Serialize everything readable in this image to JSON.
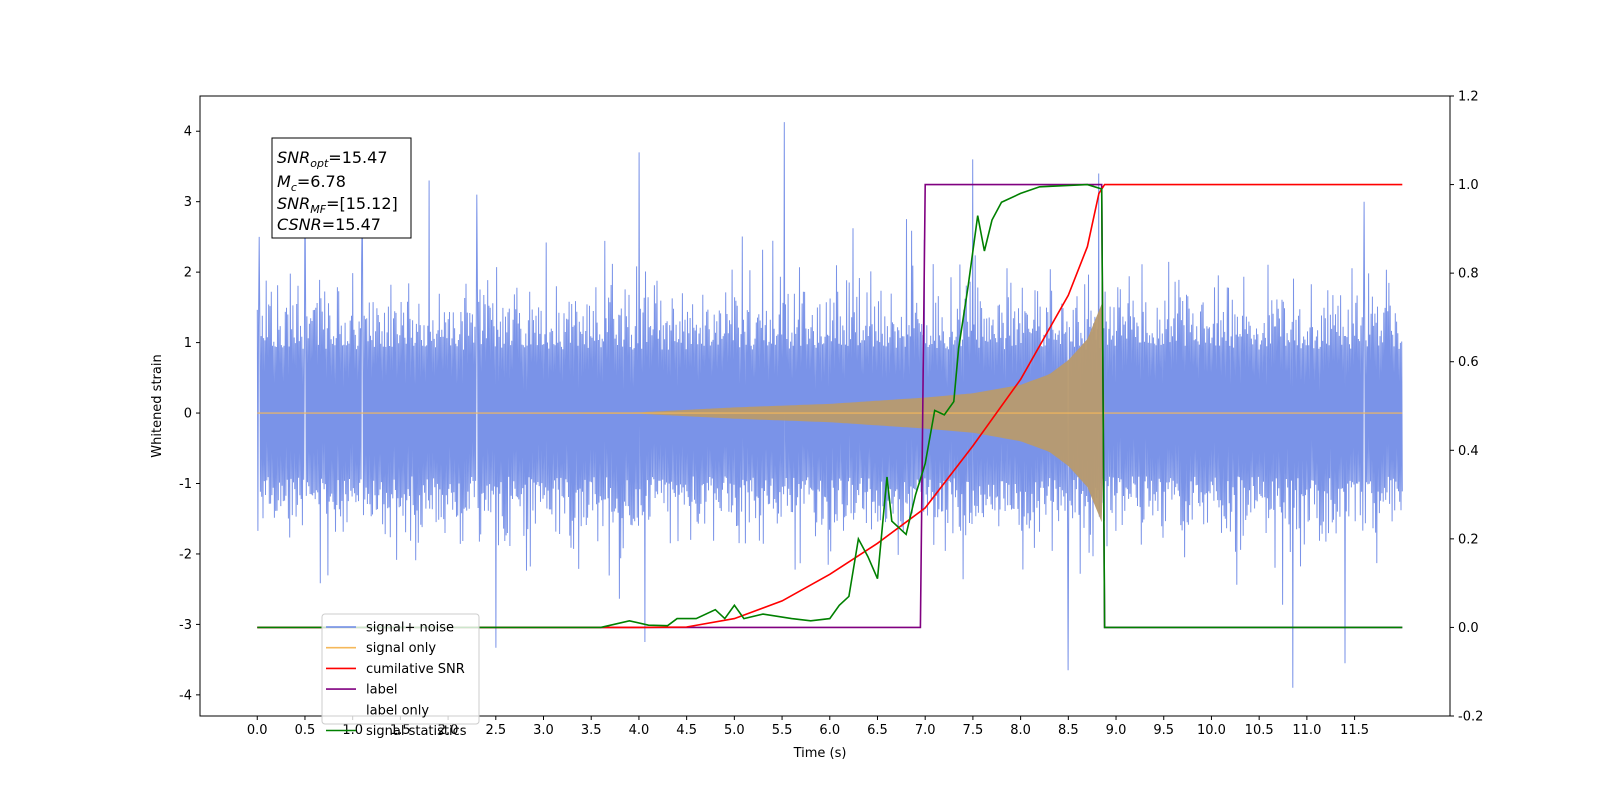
{
  "chart_data": {
    "type": "line",
    "title": "",
    "xlabel": "Time (s)",
    "ylabel": "Whitened strain",
    "xlim": [
      -0.6,
      12.5
    ],
    "ylim": [
      -4.3,
      4.5
    ],
    "y2lim": [
      -0.2,
      1.2
    ],
    "x_ticks": [
      "0.0",
      "0.5",
      "1.0",
      "1.5",
      "2.0",
      "2.5",
      "3.0",
      "3.5",
      "4.0",
      "4.5",
      "5.0",
      "5.5",
      "6.0",
      "6.5",
      "7.0",
      "7.5",
      "8.0",
      "8.5",
      "9.0",
      "9.5",
      "10.0",
      "10.5",
      "11.0",
      "11.5"
    ],
    "y_ticks": [
      "-4",
      "-3",
      "-2",
      "-1",
      "0",
      "1",
      "2",
      "3",
      "4"
    ],
    "y2_ticks": [
      "-0.2",
      "0.0",
      "0.2",
      "0.4",
      "0.6",
      "0.8",
      "1.0",
      "1.2"
    ],
    "grid": false,
    "legend_position": "lower-left",
    "annotation": {
      "snr_opt_base": "SNR",
      "snr_opt_sub": "opt",
      "snr_opt_value": "=15.47",
      "mc_base": "M",
      "mc_sub": "c",
      "mc_value": "=6.78",
      "snr_mf_base": "SNR",
      "snr_mf_sub": "MF",
      "snr_mf_value": "=[15.12]",
      "csnr_base": "CSNR",
      "csnr_value": "=15.47"
    },
    "series": [
      {
        "name": "signal+ noise",
        "color": "#6b87e6",
        "axis": "left",
        "style": "noise band",
        "x_range": [
          0.0,
          12.0
        ],
        "typical_amplitude": 2.4,
        "peaks": [
          [
            0.02,
            2.5
          ],
          [
            0.5,
            3.2
          ],
          [
            1.1,
            3.0
          ],
          [
            1.8,
            3.3
          ],
          [
            2.3,
            3.1
          ],
          [
            4.0,
            3.7
          ],
          [
            5.52,
            4.13
          ],
          [
            7.5,
            3.6
          ],
          [
            8.5,
            3.55
          ],
          [
            8.82,
            3.4
          ],
          [
            11.6,
            3.0
          ],
          [
            2.5,
            -3.33
          ],
          [
            4.06,
            -3.25
          ],
          [
            8.5,
            -3.65
          ],
          [
            10.85,
            -3.9
          ],
          [
            11.4,
            -3.55
          ]
        ]
      },
      {
        "name": "signal only",
        "color": "#f5b85a",
        "axis": "left",
        "style": "chirp",
        "envelope": [
          [
            0,
            0
          ],
          [
            4.0,
            0.01
          ],
          [
            5.0,
            0.08
          ],
          [
            6.0,
            0.13
          ],
          [
            7.0,
            0.22
          ],
          [
            7.5,
            0.28
          ],
          [
            8.0,
            0.4
          ],
          [
            8.3,
            0.55
          ],
          [
            8.5,
            0.75
          ],
          [
            8.7,
            1.05
          ],
          [
            8.85,
            1.55
          ],
          [
            8.88,
            0
          ],
          [
            12.0,
            0
          ]
        ]
      },
      {
        "name": "cumilative SNR",
        "color": "#ff0000",
        "axis": "right",
        "points": [
          [
            0,
            0
          ],
          [
            4.0,
            0
          ],
          [
            4.5,
            0.001
          ],
          [
            5.0,
            0.02
          ],
          [
            5.5,
            0.06
          ],
          [
            6.0,
            0.12
          ],
          [
            6.5,
            0.19
          ],
          [
            7.0,
            0.27
          ],
          [
            7.5,
            0.41
          ],
          [
            8.0,
            0.56
          ],
          [
            8.5,
            0.75
          ],
          [
            8.7,
            0.86
          ],
          [
            8.82,
            0.98
          ],
          [
            8.88,
            1.0
          ],
          [
            12.0,
            1.0
          ]
        ]
      },
      {
        "name": "label",
        "color": "#800080",
        "axis": "right",
        "points": [
          [
            0,
            0
          ],
          [
            6.95,
            0
          ],
          [
            7.0,
            1.0
          ],
          [
            8.85,
            1.0
          ],
          [
            8.88,
            0
          ],
          [
            12.0,
            0
          ]
        ]
      },
      {
        "name": "label only",
        "color": "#aaaaaa",
        "axis": "right",
        "points": []
      },
      {
        "name": "signal statistics",
        "color": "#008000",
        "axis": "right",
        "points": [
          [
            0,
            0
          ],
          [
            3.6,
            0
          ],
          [
            3.9,
            0.015
          ],
          [
            4.1,
            0.005
          ],
          [
            4.3,
            0.004
          ],
          [
            4.4,
            0.02
          ],
          [
            4.6,
            0.02
          ],
          [
            4.8,
            0.04
          ],
          [
            4.9,
            0.02
          ],
          [
            5.0,
            0.05
          ],
          [
            5.1,
            0.02
          ],
          [
            5.3,
            0.03
          ],
          [
            5.6,
            0.02
          ],
          [
            5.8,
            0.015
          ],
          [
            6.0,
            0.02
          ],
          [
            6.1,
            0.05
          ],
          [
            6.2,
            0.07
          ],
          [
            6.3,
            0.2
          ],
          [
            6.4,
            0.16
          ],
          [
            6.5,
            0.11
          ],
          [
            6.6,
            0.34
          ],
          [
            6.65,
            0.24
          ],
          [
            6.8,
            0.21
          ],
          [
            6.9,
            0.3
          ],
          [
            7.0,
            0.37
          ],
          [
            7.1,
            0.49
          ],
          [
            7.2,
            0.48
          ],
          [
            7.3,
            0.51
          ],
          [
            7.35,
            0.63
          ],
          [
            7.45,
            0.77
          ],
          [
            7.55,
            0.93
          ],
          [
            7.62,
            0.85
          ],
          [
            7.7,
            0.92
          ],
          [
            7.8,
            0.96
          ],
          [
            8.0,
            0.98
          ],
          [
            8.2,
            0.995
          ],
          [
            8.7,
            1.0
          ],
          [
            8.85,
            0.99
          ],
          [
            8.88,
            0.0
          ],
          [
            12.0,
            0
          ]
        ]
      }
    ]
  }
}
